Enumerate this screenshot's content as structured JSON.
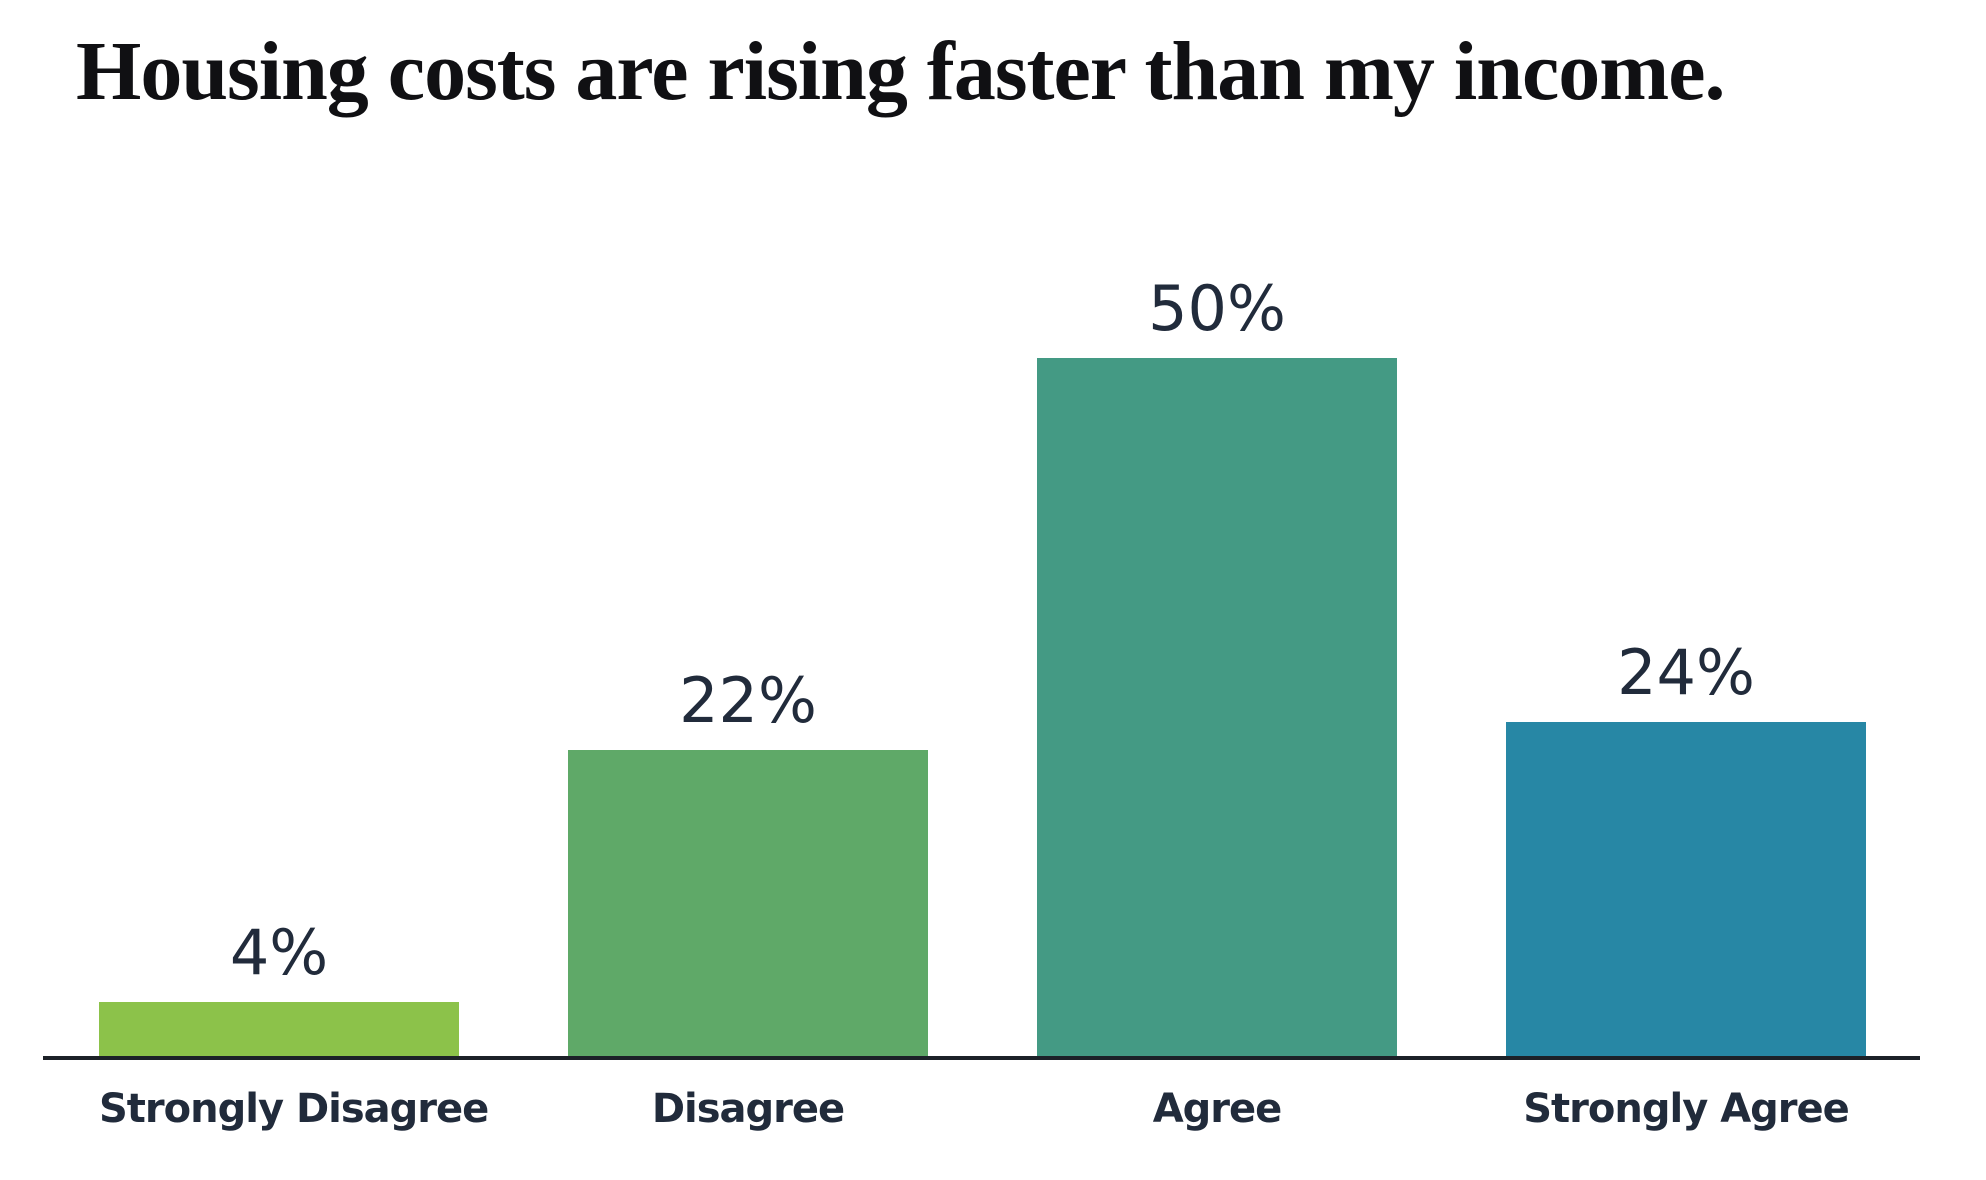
{
  "chart_data": {
    "type": "bar",
    "title": "Housing costs are rising faster than my income.",
    "categories": [
      "Strongly Disagree",
      "Disagree",
      "Agree",
      "Strongly Agree"
    ],
    "values": [
      4,
      22,
      50,
      24
    ],
    "value_labels": [
      "4%",
      "22%",
      "50%",
      "24%"
    ],
    "colors": [
      "#8CC24A",
      "#5FA968",
      "#449A84",
      "#2787A5"
    ],
    "xlabel": "",
    "ylabel": "",
    "ylim": [
      0,
      50
    ],
    "grid": false,
    "legend": "none",
    "y_axis_visible": false,
    "axis_line_color": "#1C2128",
    "label_color": "#212B3B",
    "title_color": "#101013",
    "background_color": "#FFFFFF"
  }
}
